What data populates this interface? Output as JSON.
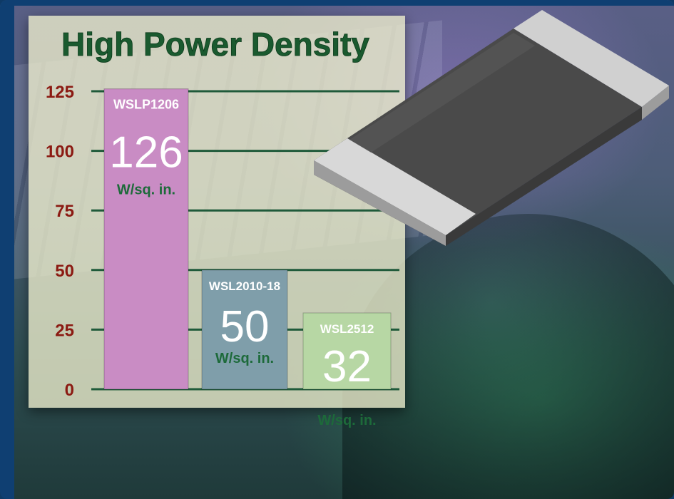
{
  "chart_data": {
    "type": "bar",
    "title": "High Power Density",
    "y_ticks": [
      "125",
      "100",
      "75",
      "50",
      "25",
      "0"
    ],
    "ylim": [
      0,
      125
    ],
    "grid": true,
    "categories": [
      "WSLP1206",
      "WSL2010-18",
      "WSL2512"
    ],
    "values": [
      126,
      50,
      32
    ],
    "value_labels": [
      "126",
      "50",
      "32"
    ],
    "unit": "W/sq. in.",
    "bar_colors": [
      "#c98cc4",
      "#7f9eaa",
      "#b7d7a4"
    ]
  },
  "colors": {
    "title": "#1a5a2f",
    "tick_label": "#8b1a12",
    "gridline": "#1f5a3a",
    "category_label": "#ffffff",
    "unit_label": "#1d6a3a"
  }
}
